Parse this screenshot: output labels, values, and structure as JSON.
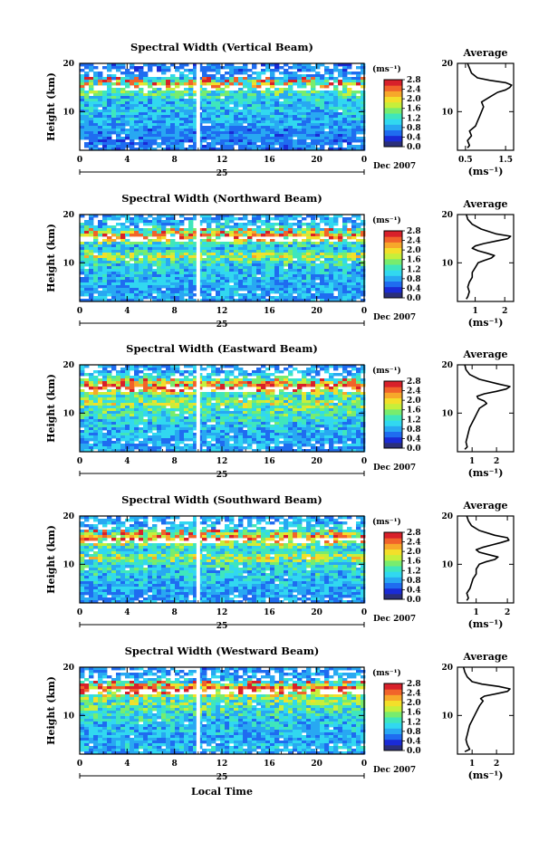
{
  "figure": {
    "footer_xlabel": "Local Time"
  },
  "colorbar": {
    "unit": "(ms⁻¹)",
    "stops": [
      "#2b2f7a",
      "#1a2bd6",
      "#1f6cf0",
      "#28a8f2",
      "#31d8f0",
      "#3fe6bc",
      "#78ec6e",
      "#c6ef3b",
      "#f3df2a",
      "#f7a82a",
      "#f1632a",
      "#d8202a"
    ]
  },
  "chart_data": [
    {
      "type": "heatmap",
      "title": "Spectral Width (Vertical Beam)",
      "ylabel": "Height (km)",
      "yticks": [
        "20",
        "10"
      ],
      "xticks": [
        "0",
        "4",
        "8",
        "12",
        "16",
        "20",
        "0"
      ],
      "day_label": "25",
      "date_label": "Dec 2007",
      "xlim": [
        0,
        24
      ],
      "ylim": [
        2,
        20
      ],
      "gap_at_hour": 10,
      "colorbar_ticks": [
        "2.8",
        "2.4",
        "2.0",
        "1.6",
        "1.2",
        "0.8",
        "0.4",
        "0.0"
      ],
      "colorbar_range": [
        0,
        2.8
      ],
      "average": {
        "title": "Average",
        "xlabel": "(ms⁻¹)",
        "xticks": [
          "0.5",
          "1.5"
        ],
        "xtick_values": [
          0.5,
          1.5
        ],
        "xlim": [
          0.3,
          1.7
        ],
        "yticks": [
          "20",
          "10"
        ],
        "profile": {
          "height": [
            2.5,
            3,
            4,
            5,
            6,
            7,
            8,
            9,
            10,
            11,
            12,
            13,
            14,
            14.5,
            15,
            15.5,
            16,
            16.5,
            17,
            18,
            19,
            20
          ],
          "value": [
            0.55,
            0.6,
            0.55,
            0.65,
            0.6,
            0.75,
            0.8,
            0.85,
            0.9,
            0.95,
            0.9,
            1.1,
            1.3,
            1.5,
            1.6,
            1.65,
            1.5,
            1.1,
            0.8,
            0.65,
            0.6,
            0.55
          ]
        }
      }
    },
    {
      "type": "heatmap",
      "title": "Spectral Width (Northward Beam)",
      "ylabel": "Height (km)",
      "yticks": [
        "20",
        "10"
      ],
      "xticks": [
        "0",
        "4",
        "8",
        "12",
        "16",
        "20",
        "0"
      ],
      "day_label": "25",
      "date_label": "Dec 2007",
      "xlim": [
        0,
        24
      ],
      "ylim": [
        2,
        20
      ],
      "gap_at_hour": 10,
      "colorbar_ticks": [
        "2.8",
        "2.4",
        "2.0",
        "1.6",
        "1.2",
        "0.8",
        "0.4",
        "0.0"
      ],
      "colorbar_range": [
        0,
        2.8
      ],
      "average": {
        "title": "Average",
        "xlabel": "(ms⁻¹)",
        "xticks": [
          "1",
          "2"
        ],
        "xtick_values": [
          1,
          2
        ],
        "xlim": [
          0.4,
          2.3
        ],
        "yticks": [
          "20",
          "10"
        ],
        "profile": {
          "height": [
            2.5,
            3,
            4,
            5,
            6,
            7,
            8,
            9,
            10,
            10.5,
            11,
            11.5,
            12,
            12.5,
            13,
            13.5,
            14,
            14.5,
            15,
            15.5,
            16,
            17,
            18,
            19,
            20
          ],
          "value": [
            0.7,
            0.75,
            0.8,
            0.75,
            0.8,
            0.9,
            0.9,
            1.0,
            1.1,
            1.3,
            1.55,
            1.65,
            1.4,
            1.1,
            0.9,
            1.0,
            1.3,
            1.7,
            2.1,
            2.2,
            1.7,
            1.2,
            0.9,
            0.75,
            0.7
          ]
        }
      }
    },
    {
      "type": "heatmap",
      "title": "Spectral Width (Eastward Beam)",
      "ylabel": "Height (km)",
      "yticks": [
        "20",
        "10"
      ],
      "xticks": [
        "0",
        "4",
        "8",
        "12",
        "16",
        "20",
        "0"
      ],
      "day_label": "25",
      "date_label": "Dec 2007",
      "xlim": [
        0,
        24
      ],
      "ylim": [
        2,
        20
      ],
      "gap_at_hour": 10,
      "colorbar_ticks": [
        "2.8",
        "2.4",
        "2.0",
        "1.6",
        "1.2",
        "0.8",
        "0.4",
        "0.0"
      ],
      "colorbar_range": [
        0,
        2.8
      ],
      "average": {
        "title": "Average",
        "xlabel": "(ms⁻¹)",
        "xticks": [
          "1",
          "2"
        ],
        "xtick_values": [
          1,
          2
        ],
        "xlim": [
          0.4,
          2.7
        ],
        "yticks": [
          "20",
          "10"
        ],
        "profile": {
          "height": [
            2.5,
            3,
            4,
            5,
            6,
            7,
            8,
            9,
            10,
            11,
            12,
            12.5,
            13,
            13.5,
            14,
            14.5,
            15,
            15.5,
            16,
            17,
            18,
            19,
            20
          ],
          "value": [
            0.7,
            0.8,
            0.75,
            0.8,
            0.85,
            0.9,
            1.0,
            1.1,
            1.2,
            1.3,
            1.6,
            1.5,
            1.25,
            1.2,
            1.5,
            2.0,
            2.4,
            2.55,
            2.1,
            1.3,
            0.9,
            0.75,
            0.7
          ]
        }
      }
    },
    {
      "type": "heatmap",
      "title": "Spectral Width (Southward Beam)",
      "ylabel": "Height (km)",
      "yticks": [
        "20",
        "10"
      ],
      "xticks": [
        "0",
        "4",
        "8",
        "12",
        "16",
        "20",
        "0"
      ],
      "day_label": "25",
      "date_label": "Dec 2007",
      "xlim": [
        0,
        24
      ],
      "ylim": [
        2,
        20
      ],
      "gap_at_hour": 10,
      "colorbar_ticks": [
        "2.8",
        "2.4",
        "2.0",
        "1.6",
        "1.2",
        "0.8",
        "0.4",
        "0.0"
      ],
      "colorbar_range": [
        0,
        2.8
      ],
      "average": {
        "title": "Average",
        "xlabel": "(ms⁻¹)",
        "xticks": [
          "1",
          "2"
        ],
        "xtick_values": [
          1,
          2
        ],
        "xlim": [
          0.4,
          2.2
        ],
        "yticks": [
          "20",
          "10"
        ],
        "profile": {
          "height": [
            2.5,
            3,
            4,
            5,
            6,
            7,
            8,
            9,
            10,
            10.5,
            11,
            11.5,
            12,
            12.5,
            13,
            13.5,
            14,
            14.5,
            15,
            15.5,
            16,
            17,
            18,
            19,
            20
          ],
          "value": [
            0.7,
            0.75,
            0.7,
            0.8,
            0.85,
            0.9,
            1.0,
            1.0,
            1.1,
            1.3,
            1.6,
            1.7,
            1.4,
            1.1,
            1.0,
            1.2,
            1.5,
            1.8,
            2.05,
            2.0,
            1.6,
            1.1,
            0.85,
            0.75,
            0.7
          ]
        }
      }
    },
    {
      "type": "heatmap",
      "title": "Spectral Width (Westward Beam)",
      "ylabel": "Height (km)",
      "yticks": [
        "20",
        "10"
      ],
      "xticks": [
        "0",
        "4",
        "8",
        "12",
        "16",
        "20",
        "0"
      ],
      "day_label": "25",
      "date_label": "Dec 2007",
      "xlim": [
        0,
        24
      ],
      "ylim": [
        2,
        20
      ],
      "gap_at_hour": 10,
      "colorbar_ticks": [
        "2.8",
        "2.4",
        "2.0",
        "1.6",
        "1.2",
        "0.8",
        "0.4",
        "0.0"
      ],
      "colorbar_range": [
        0,
        2.8
      ],
      "average": {
        "title": "Average",
        "xlabel": "(ms⁻¹)",
        "xticks": [
          "1",
          "2"
        ],
        "xtick_values": [
          1,
          2
        ],
        "xlim": [
          0.4,
          2.7
        ],
        "yticks": [
          "20",
          "10"
        ],
        "profile": {
          "height": [
            2.5,
            3,
            4,
            5,
            6,
            7,
            8,
            9,
            10,
            11,
            12,
            13,
            13.5,
            14,
            14.5,
            15,
            15.5,
            16,
            16.5,
            17,
            18,
            19,
            20
          ],
          "value": [
            0.7,
            0.9,
            0.8,
            0.75,
            0.8,
            0.85,
            0.9,
            1.0,
            1.1,
            1.2,
            1.3,
            1.45,
            1.35,
            1.5,
            2.0,
            2.45,
            2.55,
            2.1,
            1.4,
            1.0,
            0.8,
            0.7,
            0.65
          ]
        }
      }
    }
  ]
}
